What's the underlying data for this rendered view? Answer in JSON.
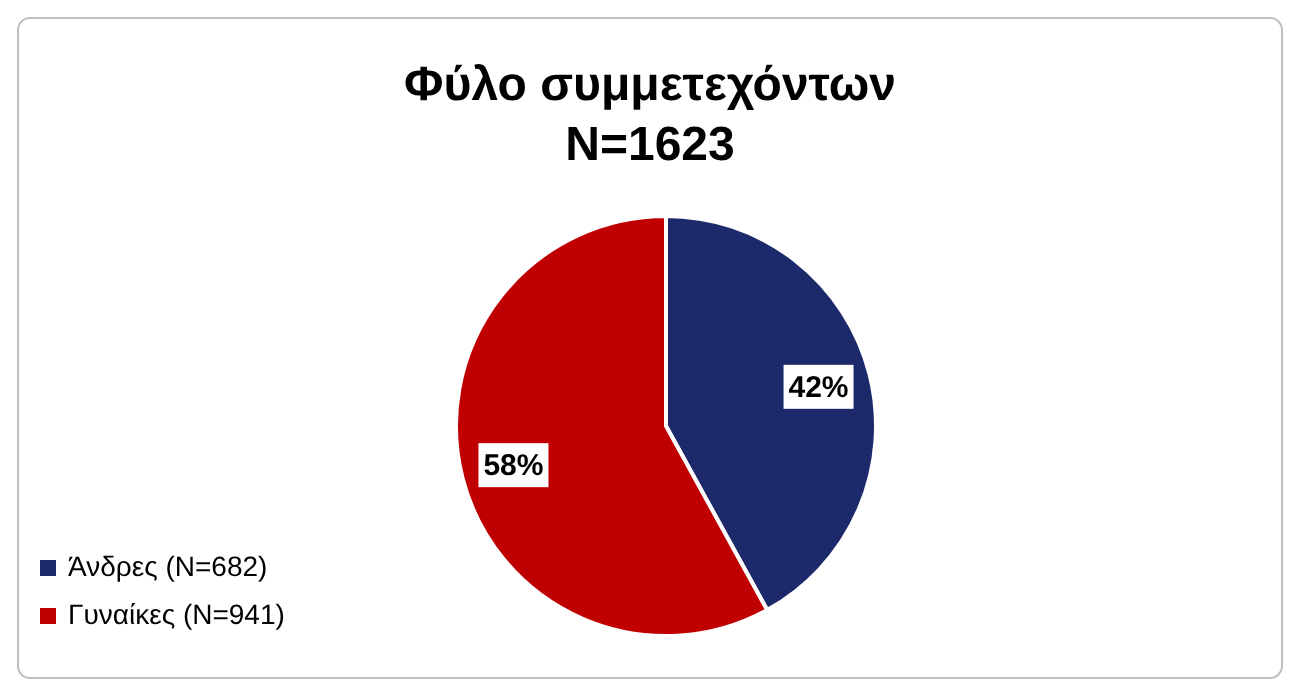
{
  "chart_data": {
    "type": "pie",
    "title": "Φύλο συμμετεχόντων",
    "subtitle": "N=1623",
    "categories": [
      "Άνδρες (N=682)",
      "Γυναίκες (N=941)"
    ],
    "values": [
      42,
      58
    ],
    "colors": [
      "#1c2a6b",
      "#c00000"
    ],
    "value_labels": [
      "42%",
      "58%"
    ],
    "legend": "bottom left"
  }
}
